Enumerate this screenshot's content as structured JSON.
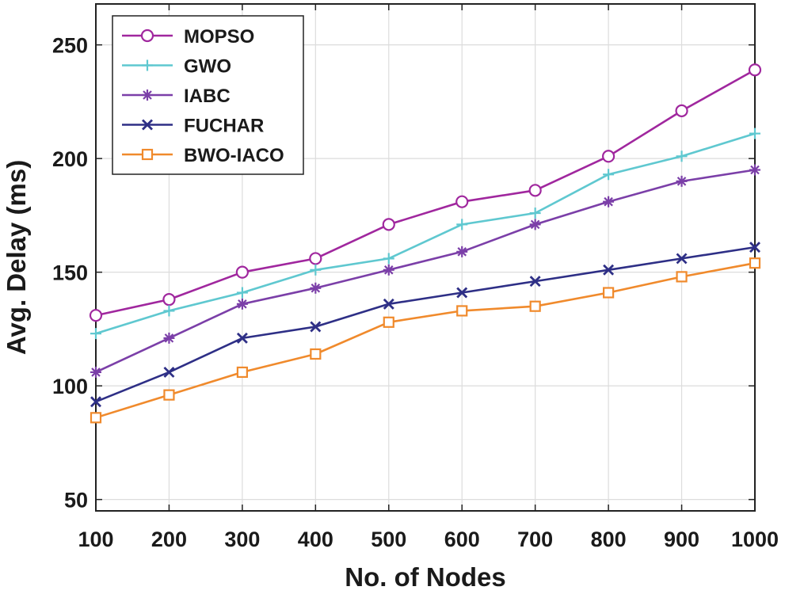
{
  "chart_data": {
    "type": "line",
    "title": "",
    "xlabel": "No. of Nodes",
    "ylabel": "Avg. Delay (ms)",
    "x": [
      100,
      200,
      300,
      400,
      500,
      600,
      700,
      800,
      900,
      1000
    ],
    "xlim": [
      100,
      1000
    ],
    "ylim": [
      45,
      268
    ],
    "xticks": [
      100,
      200,
      300,
      400,
      500,
      600,
      700,
      800,
      900,
      1000
    ],
    "yticks": [
      50,
      100,
      150,
      200,
      250
    ],
    "grid": true,
    "legend_position": "top-left",
    "series": [
      {
        "name": "MOPSO",
        "color": "#a0279e",
        "marker": "circle",
        "values": [
          131,
          138,
          150,
          156,
          171,
          181,
          186,
          201,
          221,
          239
        ]
      },
      {
        "name": "GWO",
        "color": "#5fc8d0",
        "marker": "plus",
        "values": [
          123,
          133,
          141,
          151,
          156,
          171,
          176,
          193,
          201,
          211
        ]
      },
      {
        "name": "IABC",
        "color": "#7b3fa8",
        "marker": "asterisk",
        "values": [
          106,
          121,
          136,
          143,
          151,
          159,
          171,
          181,
          190,
          195
        ]
      },
      {
        "name": "FUCHAR",
        "color": "#2e2f86",
        "marker": "x",
        "values": [
          93,
          106,
          121,
          126,
          136,
          141,
          146,
          151,
          156,
          161
        ]
      },
      {
        "name": "BWO-IACO",
        "color": "#f08a2c",
        "marker": "square",
        "values": [
          86,
          96,
          106,
          114,
          128,
          133,
          135,
          141,
          148,
          154
        ]
      }
    ]
  }
}
